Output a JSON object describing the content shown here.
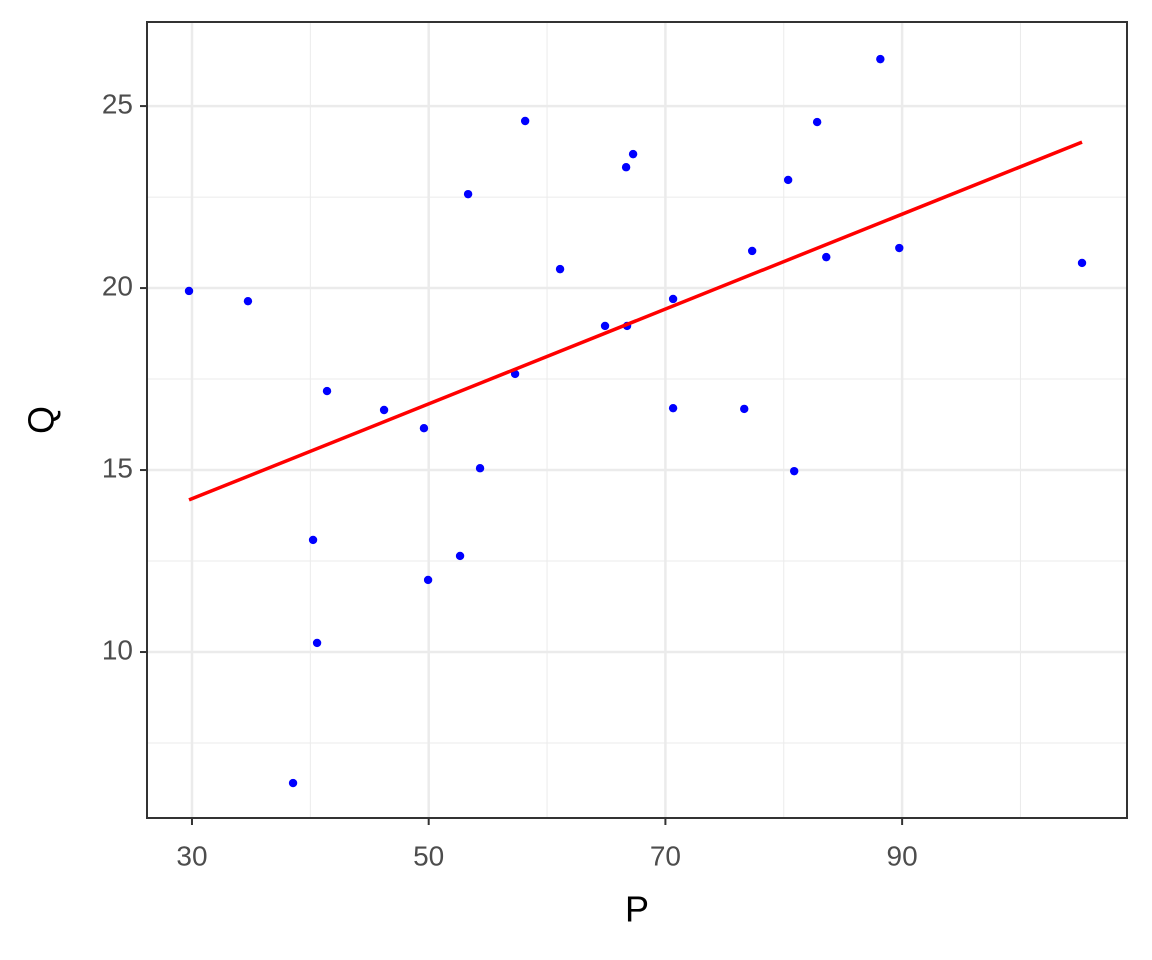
{
  "chart_data": {
    "type": "scatter",
    "x_label": "P",
    "y_label": "Q",
    "points": {
      "color": "#0000ff",
      "x": [
        29.75,
        34.73,
        41.41,
        46.23,
        49.6,
        40.23,
        40.57,
        38.54,
        49.95,
        52.65,
        54.34,
        53.33,
        58.15,
        57.3,
        61.1,
        64.9,
        66.76,
        66.68,
        67.27,
        70.65,
        70.65,
        76.66,
        77.33,
        80.37,
        80.88,
        82.82,
        83.59,
        88.16,
        89.76,
        105.2
      ],
      "values": [
        19.92,
        19.64,
        17.17,
        16.65,
        16.15,
        13.08,
        10.25,
        6.4,
        11.98,
        12.64,
        15.05,
        22.58,
        24.59,
        17.64,
        20.52,
        18.96,
        18.96,
        23.32,
        23.68,
        19.7,
        16.7,
        16.68,
        21.02,
        22.97,
        14.97,
        24.56,
        20.85,
        26.29,
        21.1,
        20.69
      ]
    },
    "fit_line": {
      "color": "#ff0000",
      "x": [
        29.75,
        105.2
      ],
      "values": [
        14.18,
        24.01
      ]
    },
    "xlim": [
      26.2,
      109.0
    ],
    "ylim": [
      5.44,
      27.31
    ],
    "xticks": [
      30,
      50,
      70,
      90
    ],
    "yticks": [
      10,
      15,
      20,
      25
    ],
    "x_minor_ticks": [
      40,
      60,
      80,
      100
    ],
    "y_minor_ticks": [
      7.5,
      12.5,
      17.5,
      22.5
    ],
    "grid": true
  }
}
